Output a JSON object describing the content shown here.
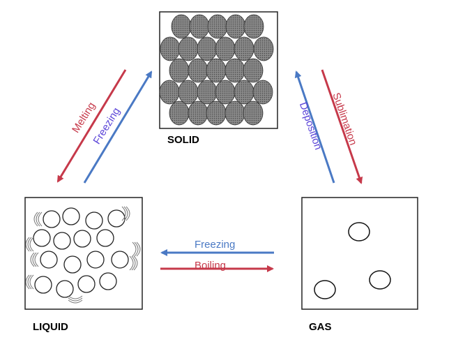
{
  "states": {
    "solid": "SOLID",
    "liquid": "LIQUID",
    "gas": "GAS"
  },
  "transitions": {
    "melting": "Melting",
    "freezing_left": "Freezing",
    "deposition": "Deposition",
    "sublimation": "Sublimation",
    "freezing_horizontal": "Freezing",
    "boiling": "Boiling"
  },
  "colors": {
    "red_arrow": "#c6394a",
    "blue_arrow": "#4a79c4",
    "red_text": "#c6394a",
    "blue_text": "#5b45d8",
    "particle_fill": "#7d7d7d"
  }
}
